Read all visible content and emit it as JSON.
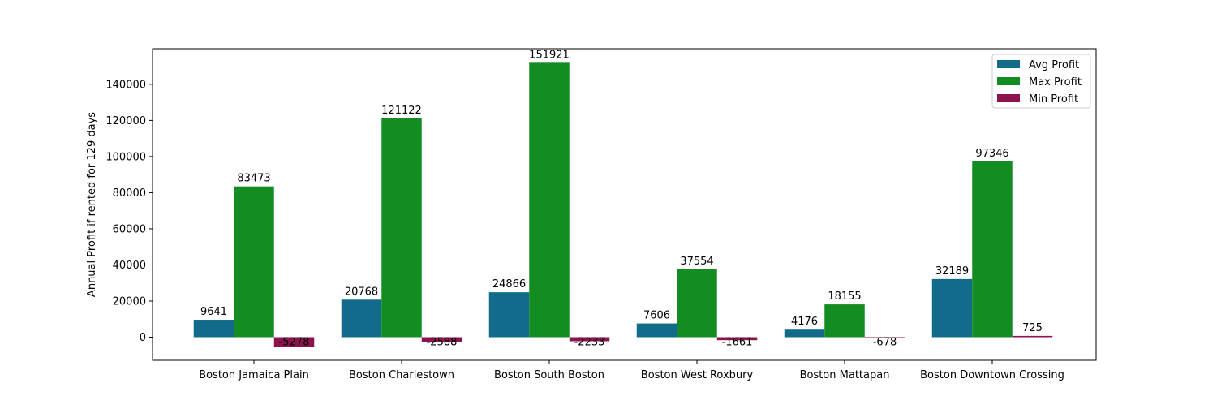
{
  "chart_data": {
    "type": "bar",
    "title": "",
    "xlabel": "",
    "ylabel": "Annual Profit if rented for 129 days",
    "categories": [
      "Boston Jamaica Plain",
      "Boston Charlestown",
      "Boston South Boston",
      "Boston West Roxbury",
      "Boston Mattapan",
      "Boston Downtown Crossing"
    ],
    "series": [
      {
        "name": "Avg Profit",
        "color": "#136b8c",
        "values": [
          9641,
          20768,
          24866,
          7606,
          4176,
          32189
        ]
      },
      {
        "name": "Max Profit",
        "color": "#138c22",
        "values": [
          83473,
          121122,
          151921,
          37554,
          18155,
          97346
        ]
      },
      {
        "name": "Min Profit",
        "color": "#8c134e",
        "values": [
          -5278,
          -2588,
          -2233,
          -1661,
          -678,
          725
        ]
      }
    ],
    "ylim": [
      -12800,
      159700
    ],
    "yticks": [
      0,
      20000,
      40000,
      60000,
      80000,
      100000,
      120000,
      140000
    ],
    "legend_position": "top-right",
    "grid": false
  }
}
